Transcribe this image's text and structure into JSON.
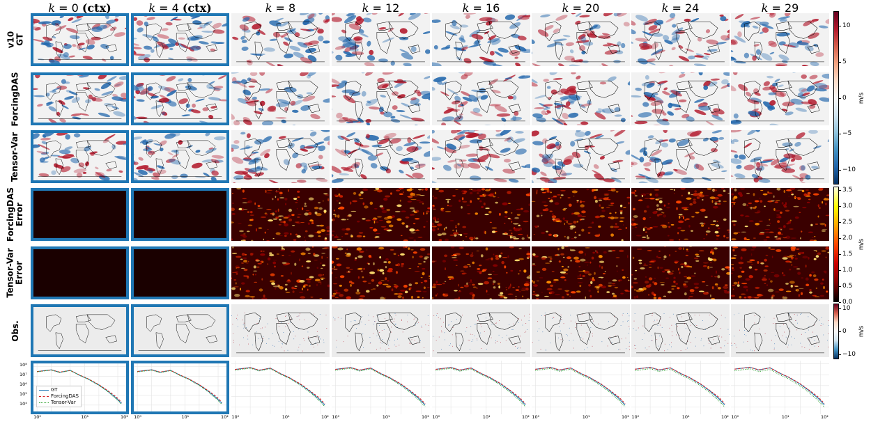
{
  "column_titles": [
    {
      "var": "k",
      "eq": " = 0 ",
      "ctx": "(ctx)"
    },
    {
      "var": "k",
      "eq": " = 4 ",
      "ctx": "(ctx)"
    },
    {
      "var": "k",
      "eq": " = 8",
      "ctx": ""
    },
    {
      "var": "k",
      "eq": " = 12",
      "ctx": ""
    },
    {
      "var": "k",
      "eq": " = 16",
      "ctx": ""
    },
    {
      "var": "k",
      "eq": " = 20",
      "ctx": ""
    },
    {
      "var": "k",
      "eq": " = 24",
      "ctx": ""
    },
    {
      "var": "k",
      "eq": " = 29",
      "ctx": ""
    }
  ],
  "row_labels": [
    {
      "line1": "v10",
      "line2": "GT"
    },
    {
      "line1": "ForcingDAS",
      "line2": ""
    },
    {
      "line1": "Tensor-Var",
      "line2": ""
    },
    {
      "line1": "ForcingDAS",
      "line2": "Error"
    },
    {
      "line1": "Tensor-Var",
      "line2": "Error"
    },
    {
      "line1": "Obs.",
      "line2": ""
    }
  ],
  "context_columns": [
    0,
    1
  ],
  "colors": {
    "context_border": "#1f77b4",
    "gt_line": "#1f77b4",
    "forcingdas_line": "#d62728",
    "tensorvar_line": "#2ca02c",
    "field_positive": "#b2182b",
    "field_negative": "#2166ac",
    "error_dark": "#1a0000",
    "error_bright": "#ffe070"
  },
  "colorbars": {
    "field": {
      "unit": "m/s",
      "ticks": [
        "10",
        "5",
        "0",
        "−5",
        "−10"
      ],
      "range": [
        -12,
        12
      ],
      "cmap": "RdBu_r"
    },
    "error": {
      "unit": "m/s",
      "ticks": [
        "3.5",
        "3.0",
        "2.5",
        "2.0",
        "1.5",
        "1.0",
        "0.5",
        "0.0"
      ],
      "range": [
        0,
        3.6
      ],
      "cmap": "hot"
    },
    "obs": {
      "unit": "m/s",
      "ticks": [
        "10",
        "0",
        "−10"
      ],
      "range": [
        -12,
        12
      ],
      "cmap": "RdBu_r"
    }
  },
  "chart_data": {
    "type": "line",
    "description_panels": "spectrum",
    "xscale": "log",
    "yscale": "log",
    "x_tick_labels": [
      "10⁰",
      "10¹",
      "10²"
    ],
    "y_tick_labels": [
      "10⁸",
      "10⁷",
      "10⁶",
      "10⁵",
      "10⁴"
    ],
    "legend": [
      {
        "name": "GT",
        "style": "solid"
      },
      {
        "name": "ForcingDAS",
        "style": "dashed"
      },
      {
        "name": "Tensor-Var",
        "style": "dotted"
      }
    ],
    "series": [
      {
        "name": "GT",
        "wavenumber": [
          1,
          2,
          3,
          5,
          8,
          12,
          20,
          30,
          45,
          60
        ],
        "power": [
          300000000.0,
          450000000.0,
          250000000.0,
          400000000.0,
          120000000.0,
          50000000.0,
          12000000.0,
          3000000.0,
          600000.0,
          150000.0
        ]
      },
      {
        "name": "ForcingDAS",
        "wavenumber": [
          1,
          2,
          3,
          5,
          8,
          12,
          20,
          30,
          45,
          60
        ],
        "power": [
          300000000.0,
          440000000.0,
          260000000.0,
          390000000.0,
          125000000.0,
          52000000.0,
          13000000.0,
          3400000.0,
          800000.0,
          200000.0
        ]
      },
      {
        "name": "Tensor-Var",
        "wavenumber": [
          1,
          2,
          3,
          5,
          8,
          12,
          20,
          30,
          45,
          60
        ],
        "power": [
          280000000.0,
          430000000.0,
          240000000.0,
          380000000.0,
          115000000.0,
          48000000.0,
          11000000.0,
          2700000.0,
          500000.0,
          120000.0
        ]
      }
    ]
  }
}
